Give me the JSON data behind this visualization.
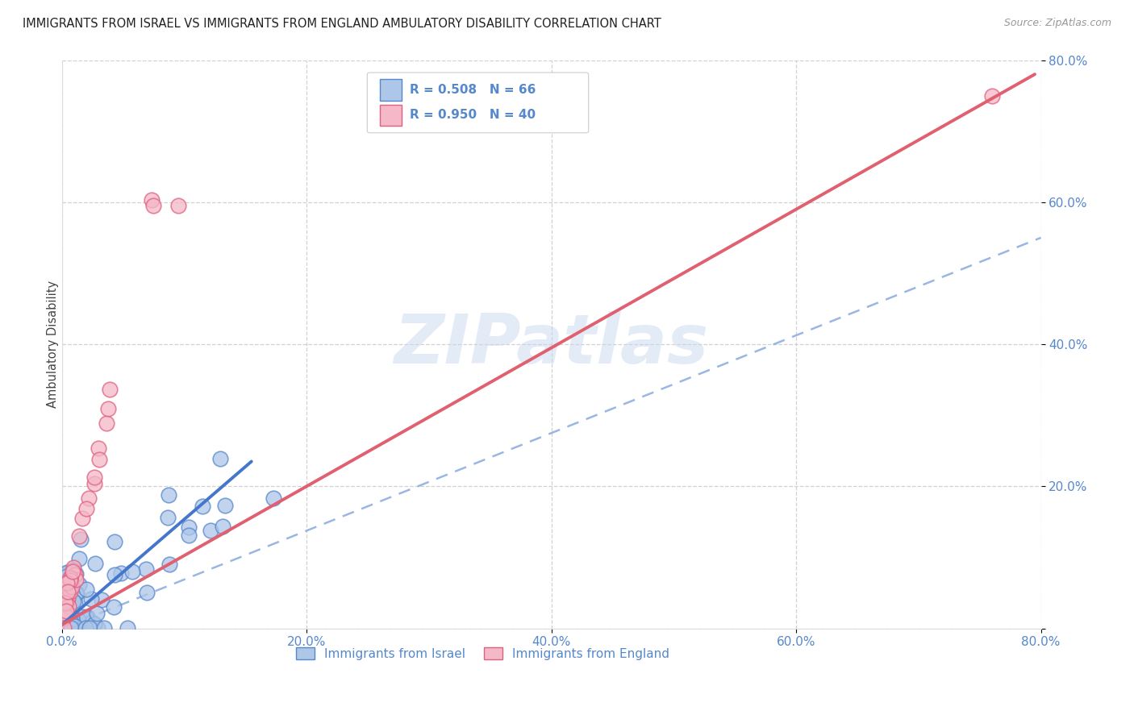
{
  "title": "IMMIGRANTS FROM ISRAEL VS IMMIGRANTS FROM ENGLAND AMBULATORY DISABILITY CORRELATION CHART",
  "source": "Source: ZipAtlas.com",
  "ylabel": "Ambulatory Disability",
  "legend_israel": "Immigrants from Israel",
  "legend_england": "Immigrants from England",
  "R_israel": 0.508,
  "N_israel": 66,
  "R_england": 0.95,
  "N_england": 40,
  "color_israel_fill": "#AEC6E8",
  "color_england_fill": "#F4B8C8",
  "color_israel_edge": "#5588CC",
  "color_england_edge": "#E06080",
  "color_israel_line": "#4477CC",
  "color_england_line": "#E06070",
  "color_diag_dashed": "#88AADD",
  "xlim": [
    0.0,
    0.8
  ],
  "ylim": [
    0.0,
    0.8
  ],
  "background_color": "#FFFFFF",
  "title_fontsize": 10.5,
  "tick_label_color": "#5588CC",
  "watermark_color": "#C8D8EE",
  "watermark_alpha": 0.5,
  "israel_line_x": [
    0.0,
    0.155
  ],
  "israel_line_y": [
    0.005,
    0.235
  ],
  "england_line_x": [
    0.0,
    0.795
  ],
  "england_line_y": [
    0.005,
    0.78
  ],
  "diag_line_x": [
    0.0,
    0.8
  ],
  "diag_line_y": [
    0.0,
    0.55
  ]
}
